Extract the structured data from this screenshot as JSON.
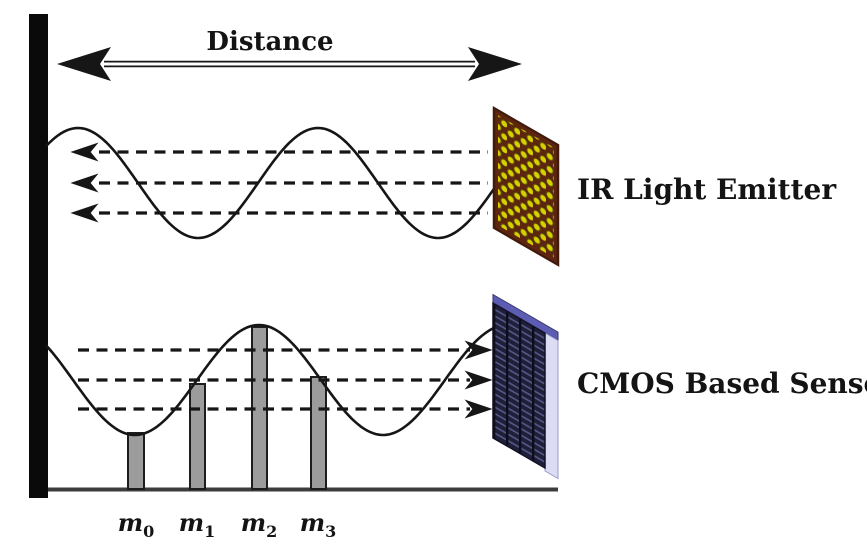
{
  "labels": {
    "distance": "Distance",
    "emitter": "IR Light Emitter",
    "sensor": "CMOS Based Sensor",
    "measurements": [
      {
        "base": "m",
        "sub": "0"
      },
      {
        "base": "m",
        "sub": "1"
      },
      {
        "base": "m",
        "sub": "2"
      },
      {
        "base": "m",
        "sub": "3"
      }
    ]
  },
  "colors": {
    "ink": "#161616",
    "baseline": "#3c3c3c",
    "wall": "#0a0a0a",
    "bar_fill": "#9c9c9c",
    "bar_stroke": "#1d1d1d",
    "emitter_face": "#5d2510",
    "emitter_border": "#401a0a",
    "emitter_dot": "#d6d000",
    "sensor_face": "#1f1f3a",
    "sensor_stripe": "#565684",
    "sensor_groove": "#0c0c1c",
    "sensor_top": "#5c5cb2",
    "sensor_side": "#dcdcf4"
  }
}
